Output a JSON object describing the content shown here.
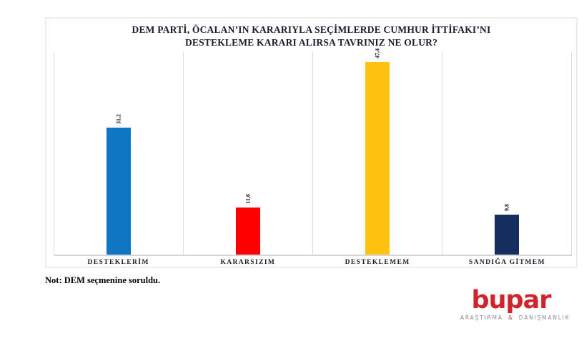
{
  "title": {
    "line1": "DEM PARTİ, ÖCALAN’IN KARARIYLA SEÇİMLERDE CUMHUR İTTİFAKI’NI",
    "line2": "DESTEKLEME KARARI ALIRSA TAVRINIZ NE OLUR?"
  },
  "chart_data": {
    "type": "bar",
    "title": "DEM PARTİ, ÖCALAN’IN KARARIYLA SEÇİMLERDE CUMHUR İTTİFAKI’NI DESTEKLEME KARARI ALIRSA TAVRINIZ NE OLUR?",
    "categories": [
      "DESTEKLERİM",
      "KARARSIZIM",
      "DESTEKLEMEM",
      "SANDIĞA GİTMEM"
    ],
    "values": [
      31.2,
      11.6,
      47.4,
      9.8
    ],
    "value_labels": [
      "31,2",
      "11,6",
      "47,4",
      "9,8"
    ],
    "bar_colors": [
      "#0E76C3",
      "#FE0000",
      "#FFC110",
      "#152E5F"
    ],
    "xlabel": "",
    "ylabel": "",
    "ylim": [
      0,
      50
    ],
    "legend": "none",
    "grid": "vertical category separators only",
    "value_label_orientation": "rotated-90"
  },
  "note": "Not: DEM seçmenine soruldu.",
  "logo": {
    "wordmark": "bupar",
    "wordmark_color": "#D0232B",
    "subtitle_left": "ARAŞTIRMA",
    "subtitle_amp": "&",
    "subtitle_right": "DANIŞMANLIK",
    "subtitle_color": "#8C8C8C",
    "amp_color": "#C0392B"
  },
  "style": {
    "text_color": "#1b1b2e",
    "box_border_color": "#ececec",
    "grid_color": "#dedede",
    "axis_color": "#d6d6d6"
  }
}
